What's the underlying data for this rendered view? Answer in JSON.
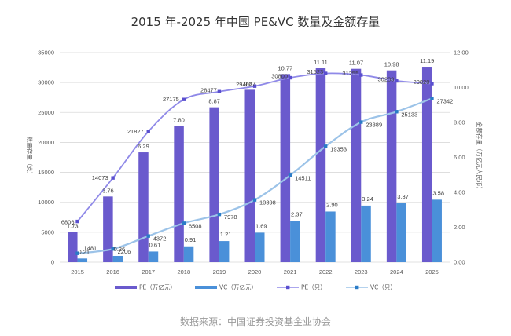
{
  "chart_data": {
    "type": "bar+line",
    "title": "2015 年-2025 年中国 PE&VC 数量及金额存量",
    "source": "数据来源：中国证券投资基金业协会",
    "categories": [
      "2015",
      "2016",
      "2017",
      "2018",
      "2019",
      "2020",
      "2021",
      "2022",
      "2023",
      "2024",
      "2025"
    ],
    "left_axis": {
      "label": "数量存量（支）",
      "range": [
        0,
        35000
      ],
      "ticks": [
        "0",
        "5000",
        "10000",
        "15000",
        "20000",
        "25000",
        "30000",
        "35000"
      ]
    },
    "right_axis": {
      "label": "金额存量（万亿元人民币）",
      "range": [
        0,
        12
      ],
      "ticks": [
        "0.00",
        "2.00",
        "4.00",
        "6.00",
        "8.00",
        "10.00",
        "12.00"
      ]
    },
    "grid": true,
    "legend_position": "bottom",
    "series": [
      {
        "name": "PE（万亿元）",
        "kind": "bar",
        "axis": "right",
        "color": "#6a5acd",
        "values": [
          1.73,
          3.76,
          6.29,
          7.8,
          8.87,
          9.87,
          10.77,
          11.11,
          11.07,
          10.98,
          11.19
        ],
        "labels": [
          "1.73",
          "3.76",
          "6.29",
          "7.80",
          "8.87",
          "9.87",
          "10.77",
          "11.11",
          "11.07",
          "10.98",
          "11.19"
        ]
      },
      {
        "name": "VC（万亿元）",
        "kind": "bar",
        "axis": "right",
        "color": "#4a90d9",
        "values": [
          0.21,
          0.36,
          0.61,
          0.91,
          1.21,
          1.69,
          2.37,
          2.9,
          3.24,
          3.37,
          3.58
        ],
        "labels": [
          "0.21",
          "0.36",
          "0.61",
          "0.91",
          "1.21",
          "1.69",
          "2.37",
          "2.90",
          "3.24",
          "3.37",
          "3.58"
        ]
      },
      {
        "name": "PE（只）",
        "kind": "line",
        "axis": "left",
        "color": "#8f89e8",
        "marker_color": "#5a4fcf",
        "values": [
          6806,
          14073,
          21827,
          27175,
          28477,
          29402,
          30800,
          31523,
          31255,
          30283,
          29820
        ],
        "labels": [
          "6806",
          "14073",
          "21827",
          "27175",
          "28477",
          "29402",
          "30800",
          "31523",
          "31255",
          "30283",
          "29820"
        ]
      },
      {
        "name": "VC（只）",
        "kind": "line",
        "axis": "left",
        "color": "#9cc3e8",
        "marker_color": "#2a7cc7",
        "values": [
          1481,
          2206,
          4372,
          6508,
          7978,
          10398,
          14511,
          19353,
          23389,
          25133,
          27342
        ],
        "labels": [
          "1481",
          "2206",
          "4372",
          "6508",
          "7978",
          "10398",
          "14511",
          "19353",
          "23389",
          "25133",
          "27342"
        ]
      }
    ]
  }
}
